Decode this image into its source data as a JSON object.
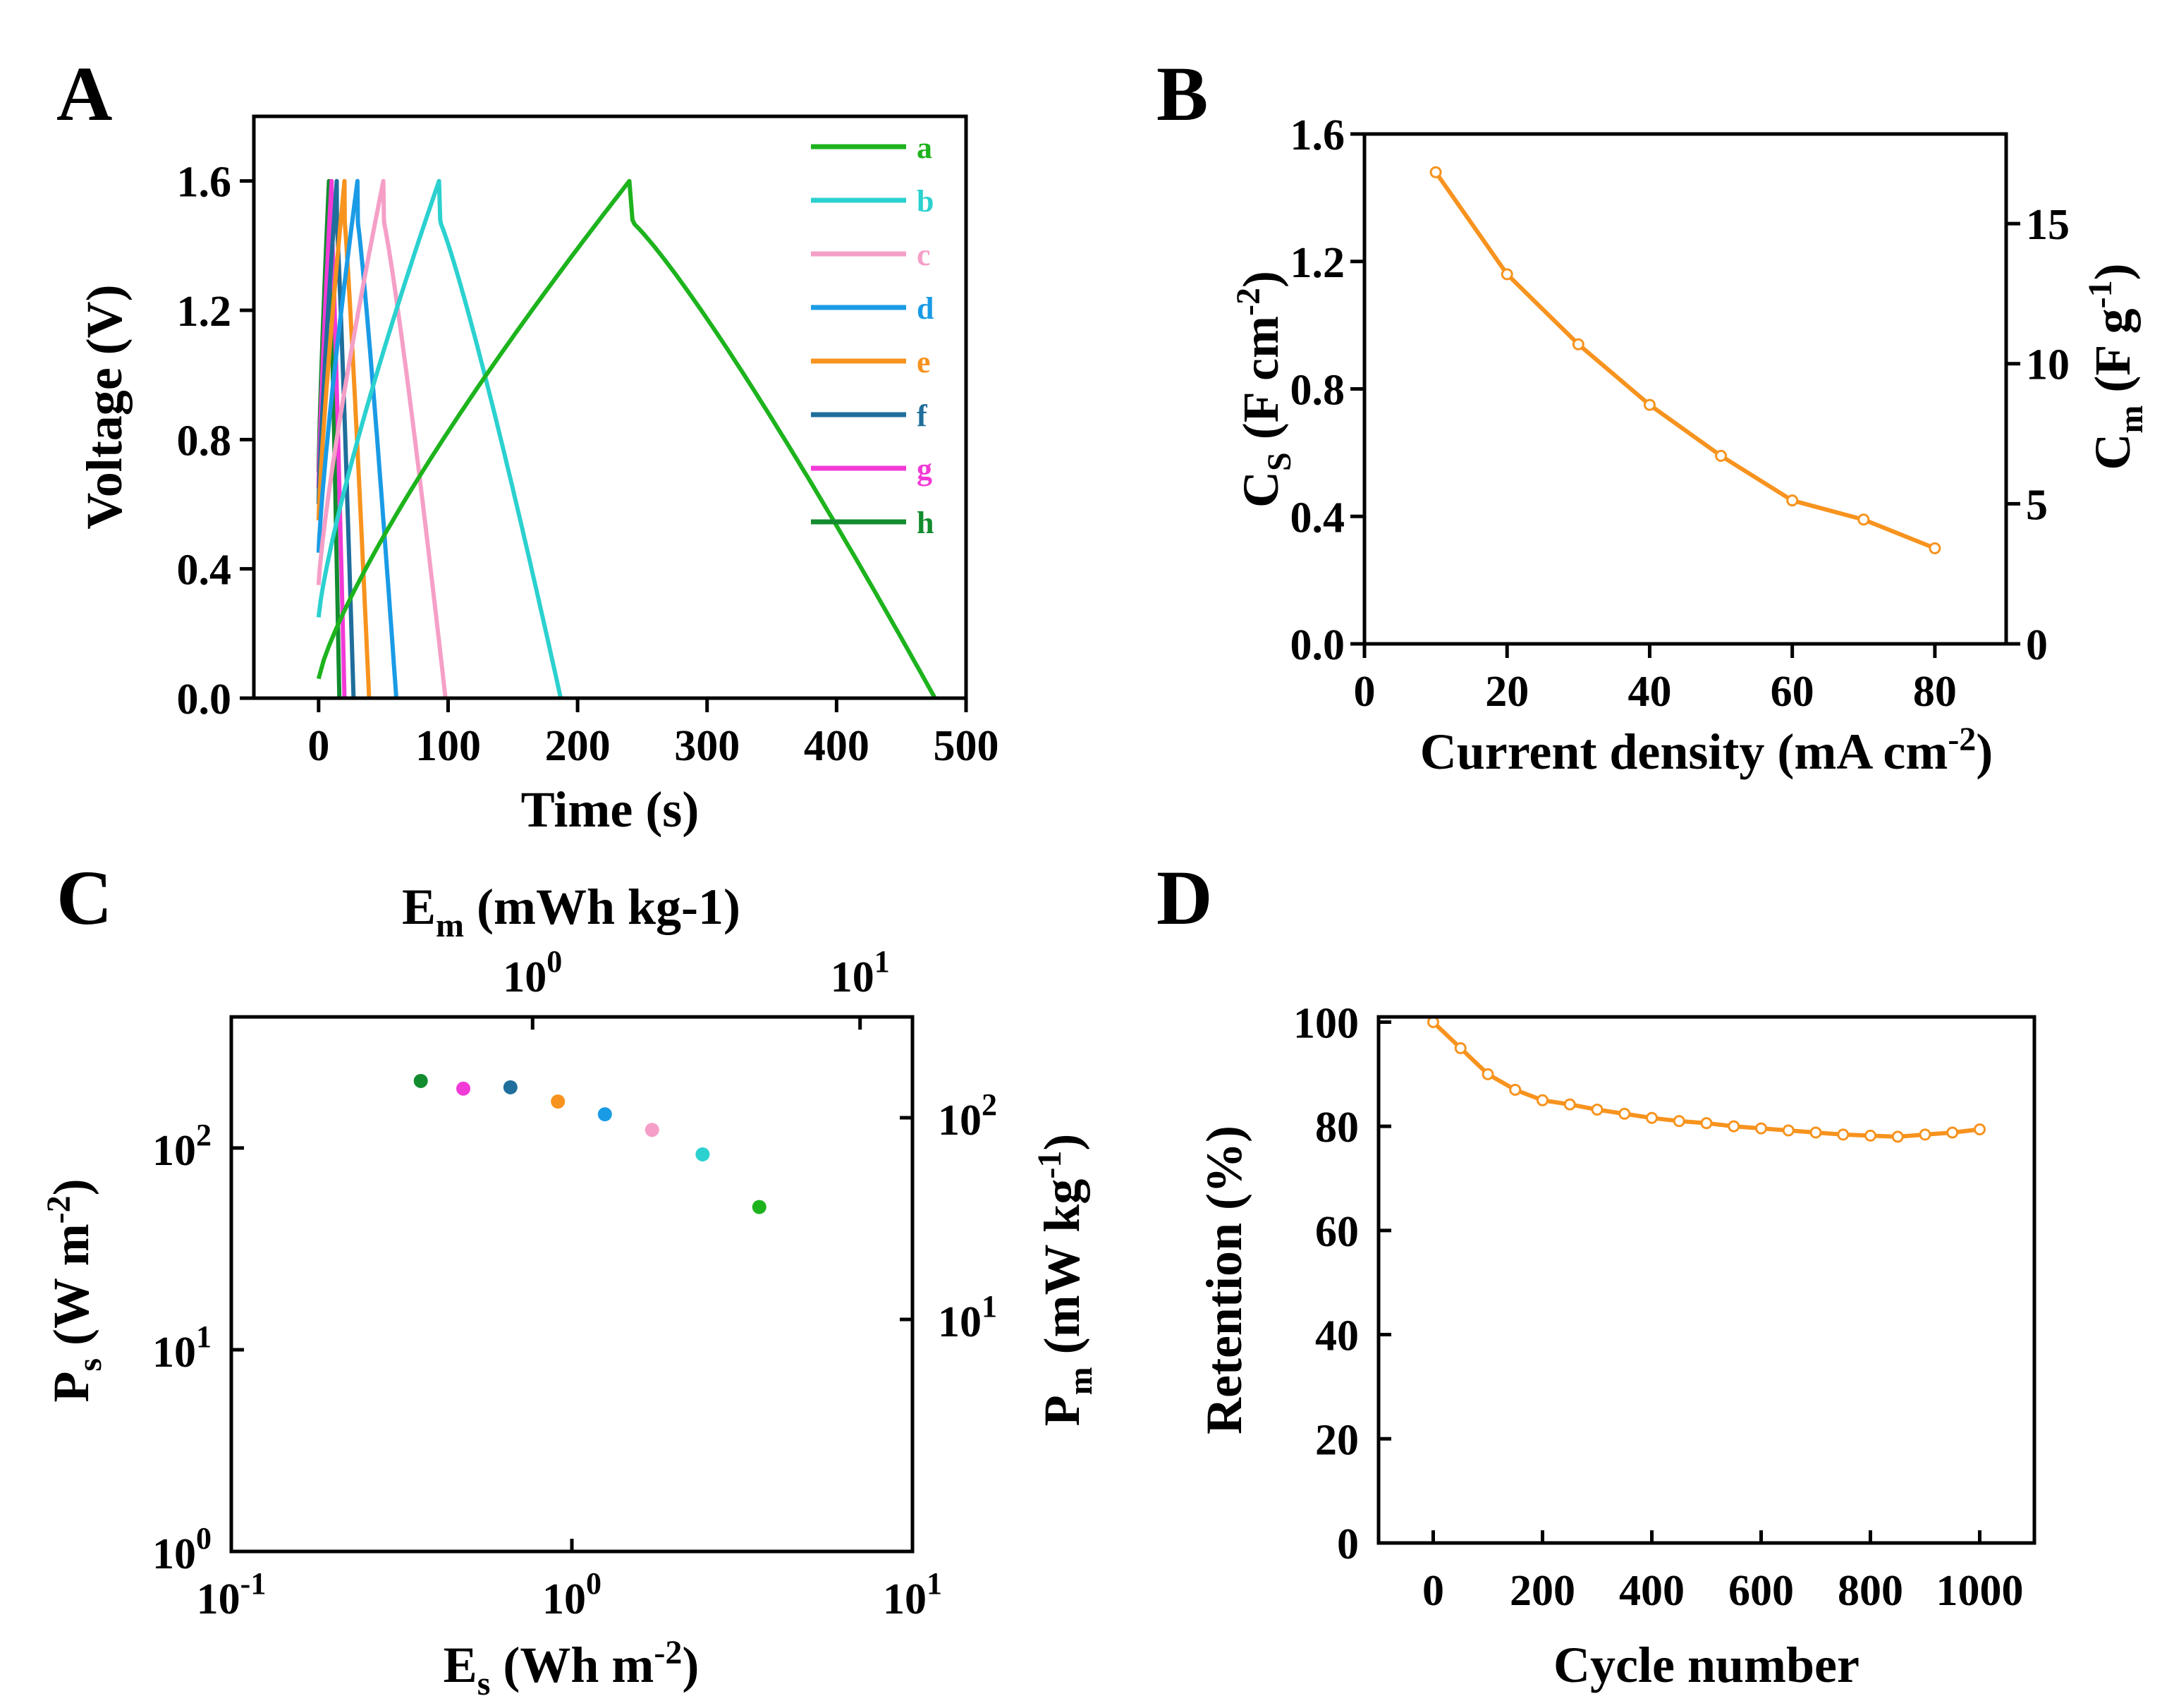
{
  "chart_data": [
    {
      "panel": "A",
      "type": "line",
      "xlabel": "Time (s)",
      "ylabel": "Voltage (V)",
      "xlim": [
        -50,
        500
      ],
      "ylim": [
        0,
        1.8
      ],
      "xticks": [
        0,
        100,
        200,
        300,
        400,
        500
      ],
      "xtick_labels": [
        "0",
        "100",
        "200",
        "300",
        "400",
        "500"
      ],
      "yticks": [
        0,
        0.4,
        0.8,
        1.2,
        1.6
      ],
      "ytick_labels": [
        "0.0",
        "0.4",
        "0.8",
        "1.2",
        "1.6"
      ],
      "legend_position": "top-right",
      "series": [
        {
          "name": "a",
          "color": "#1db31d",
          "start_v": 0.06,
          "t_peak": 240,
          "t_end": 476
        },
        {
          "name": "b",
          "color": "#2bd1cf",
          "start_v": 0.25,
          "t_peak": 93,
          "t_end": 187
        },
        {
          "name": "c",
          "color": "#f59fc7",
          "start_v": 0.35,
          "t_peak": 50,
          "t_end": 98
        },
        {
          "name": "d",
          "color": "#1a9be6",
          "start_v": 0.45,
          "t_peak": 30,
          "t_end": 60
        },
        {
          "name": "e",
          "color": "#f7931e",
          "start_v": 0.55,
          "t_peak": 20,
          "t_end": 39
        },
        {
          "name": "f",
          "color": "#1f6e9c",
          "start_v": 0.6,
          "t_peak": 14,
          "t_end": 27
        },
        {
          "name": "g",
          "color": "#f23ad6",
          "start_v": 0.65,
          "t_peak": 10,
          "t_end": 20
        },
        {
          "name": "h",
          "color": "#128c2e",
          "start_v": 0.7,
          "t_peak": 8,
          "t_end": 16
        }
      ]
    },
    {
      "panel": "B",
      "type": "line",
      "xlabel_main": "Current density (mA cm",
      "xlabel_sup": "-2",
      "xlabel_close": ")",
      "ylabel_left_main": "C",
      "ylabel_left_sub": "S",
      "ylabel_left_rest": " (F cm",
      "ylabel_left_sup": "-2",
      "ylabel_left_close": ")",
      "ylabel_right_main": "C",
      "ylabel_right_sub": "m",
      "ylabel_right_rest": " (F g",
      "ylabel_right_sup": "-1",
      "ylabel_right_close": ")",
      "xlim": [
        0,
        90
      ],
      "ylim": [
        0,
        1.6
      ],
      "ylim_right": [
        0,
        18.2
      ],
      "xticks": [
        0,
        20,
        40,
        60,
        80
      ],
      "xtick_labels": [
        "0",
        "20",
        "40",
        "60",
        "80"
      ],
      "yticks": [
        0,
        0.4,
        0.8,
        1.2,
        1.6
      ],
      "ytick_labels": [
        "0.0",
        "0.4",
        "0.8",
        "1.2",
        "1.6"
      ],
      "yticks_right": [
        0,
        5,
        10,
        15
      ],
      "ytick_labels_right": [
        "0",
        "5",
        "10",
        "15"
      ],
      "color": "#f7931e",
      "x": [
        10,
        20,
        30,
        40,
        50,
        60,
        70,
        80
      ],
      "values": [
        1.48,
        1.16,
        0.94,
        0.75,
        0.59,
        0.45,
        0.39,
        0.3
      ]
    },
    {
      "panel": "C",
      "type": "scatter",
      "scale": "log-log",
      "xlabel_main": "E",
      "xlabel_sub": "s",
      "xlabel_rest": " (Wh m",
      "xlabel_sup": "-2",
      "xlabel_close": ")",
      "ylabel_main": "P",
      "ylabel_sub": "s",
      "ylabel_rest": " (W m",
      "ylabel_sup": "-2",
      "ylabel_close": ")",
      "top_xlabel_main": "E",
      "top_xlabel_sub": "m",
      "top_xlabel_rest": " (mWh kg-1)",
      "right_ylabel_main": "P",
      "right_ylabel_sub": "m",
      "right_ylabel_rest": " (mW kg",
      "right_ylabel_sup": "-1",
      "right_ylabel_close": ")",
      "xlim_exp": [
        -1,
        1
      ],
      "ylim_exp": [
        0,
        2.65
      ],
      "top_xlim_exp": [
        -0.92,
        1.16
      ],
      "right_ylim_exp": [
        -0.15,
        2.5
      ],
      "xticks_exp": [
        -1,
        0,
        1
      ],
      "xtick_labels_base": [
        "10",
        "10",
        "10"
      ],
      "xtick_labels_exp": [
        "-1",
        "0",
        "1"
      ],
      "yticks_exp": [
        0,
        1,
        2
      ],
      "ytick_labels_base": [
        "10",
        "10",
        "10"
      ],
      "ytick_labels_exp": [
        "0",
        "1",
        "2"
      ],
      "top_xticks_exp": [
        0,
        1
      ],
      "top_xtick_labels_base": [
        "10",
        "10"
      ],
      "top_xtick_labels_exp": [
        "0",
        "1"
      ],
      "right_yticks_exp": [
        1,
        2
      ],
      "right_ytick_labels_base": [
        "10",
        "10"
      ],
      "right_ytick_labels_exp": [
        "1",
        "2"
      ],
      "points": [
        {
          "x": 0.36,
          "y": 215,
          "color": "#128c2e"
        },
        {
          "x": 0.48,
          "y": 197,
          "color": "#f23ad6"
        },
        {
          "x": 0.66,
          "y": 200,
          "color": "#1f6e9c"
        },
        {
          "x": 0.91,
          "y": 170,
          "color": "#f7931e"
        },
        {
          "x": 1.25,
          "y": 147,
          "color": "#1a9be6"
        },
        {
          "x": 1.72,
          "y": 123,
          "color": "#f59fc7"
        },
        {
          "x": 2.42,
          "y": 93,
          "color": "#2bd1cf"
        },
        {
          "x": 3.55,
          "y": 51,
          "color": "#1db31d"
        }
      ]
    },
    {
      "panel": "D",
      "type": "line",
      "xlabel": "Cycle number",
      "ylabel": "Retention (%)",
      "xlim": [
        -100,
        1100
      ],
      "ylim": [
        0,
        101
      ],
      "xticks": [
        0,
        200,
        400,
        600,
        800,
        1000
      ],
      "xtick_labels": [
        "0",
        "200",
        "400",
        "600",
        "800",
        "1000"
      ],
      "yticks": [
        0,
        20,
        40,
        60,
        80,
        100
      ],
      "ytick_labels": [
        "0",
        "20",
        "40",
        "60",
        "80",
        "100"
      ],
      "color": "#f7931e",
      "x": [
        0,
        50,
        100,
        150,
        200,
        250,
        300,
        350,
        400,
        450,
        500,
        550,
        600,
        650,
        700,
        750,
        800,
        850,
        900,
        950,
        1000
      ],
      "values": [
        100,
        95,
        90,
        87,
        85,
        84.2,
        83.2,
        82.4,
        81.6,
        81,
        80.6,
        80,
        79.6,
        79.2,
        78.8,
        78.4,
        78.2,
        78,
        78.4,
        78.8,
        79.4
      ]
    }
  ],
  "panel_letters": [
    "A",
    "B",
    "C",
    "D"
  ]
}
